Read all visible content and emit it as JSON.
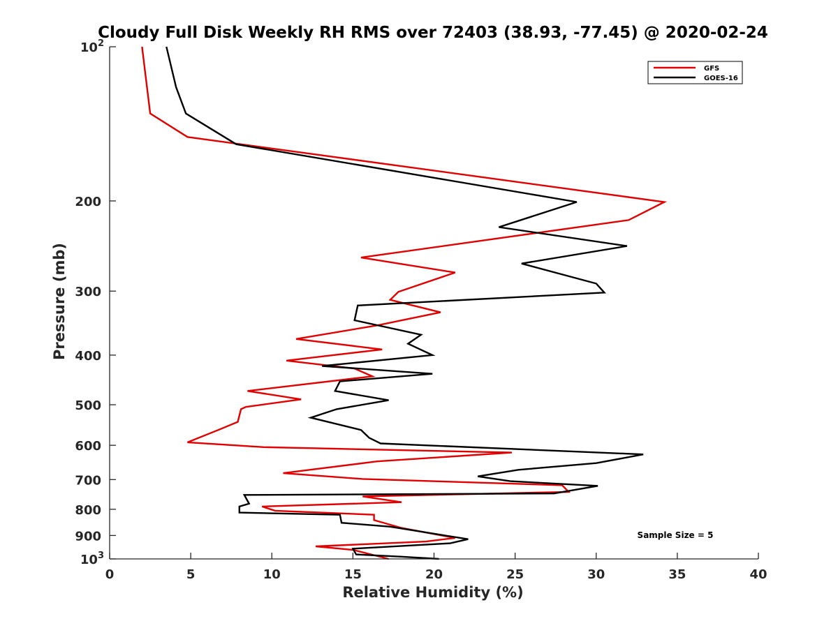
{
  "chart_data": {
    "type": "line",
    "title": "Cloudy Full Disk Weekly RH RMS over 72403 (38.93, -77.45) @ 2020-02-24",
    "xlabel": "Relative Humidity (%)",
    "ylabel": "Pressure (mb)",
    "xlim": [
      0,
      40
    ],
    "ylim": [
      100,
      1000
    ],
    "y_scale": "log",
    "y_reversed": true,
    "grid": false,
    "x_ticks": [
      {
        "value": 0,
        "label": "0"
      },
      {
        "value": 5,
        "label": "5"
      },
      {
        "value": 10,
        "label": "10"
      },
      {
        "value": 15,
        "label": "15"
      },
      {
        "value": 20,
        "label": "20"
      },
      {
        "value": 25,
        "label": "25"
      },
      {
        "value": 30,
        "label": "30"
      },
      {
        "value": 35,
        "label": "35"
      },
      {
        "value": 40,
        "label": "40"
      }
    ],
    "y_ticks": [
      {
        "value": 100,
        "base": "10",
        "exp": "2"
      },
      {
        "value": 200,
        "label": "200"
      },
      {
        "value": 300,
        "label": "300"
      },
      {
        "value": 400,
        "label": "400"
      },
      {
        "value": 500,
        "label": "500"
      },
      {
        "value": 600,
        "label": "600"
      },
      {
        "value": 700,
        "label": "700"
      },
      {
        "value": 800,
        "label": "800"
      },
      {
        "value": 900,
        "label": "900"
      },
      {
        "value": 1000,
        "base": "10",
        "exp": "3"
      }
    ],
    "legend_position": "top-right",
    "annotation": "Sample Size = 5",
    "series": [
      {
        "name": "GFS",
        "color": "#e00000",
        "points": [
          [
            2.0,
            100
          ],
          [
            2.5,
            135
          ],
          [
            4.8,
            150
          ],
          [
            34.2,
            201
          ],
          [
            32.0,
            218
          ],
          [
            15.5,
            258
          ],
          [
            21.3,
            276
          ],
          [
            17.8,
            301
          ],
          [
            17.3,
            312
          ],
          [
            20.4,
            330
          ],
          [
            16.5,
            350
          ],
          [
            11.5,
            372
          ],
          [
            16.8,
            390
          ],
          [
            10.9,
            410
          ],
          [
            15.1,
            425
          ],
          [
            16.2,
            440
          ],
          [
            8.5,
            470
          ],
          [
            11.8,
            488
          ],
          [
            8.4,
            505
          ],
          [
            8.1,
            510
          ],
          [
            7.9,
            540
          ],
          [
            6.7,
            560
          ],
          [
            4.8,
            592
          ],
          [
            9.5,
            605
          ],
          [
            24.8,
            620
          ],
          [
            16.5,
            645
          ],
          [
            10.7,
            680
          ],
          [
            15.6,
            698
          ],
          [
            27.9,
            718
          ],
          [
            28.3,
            740
          ],
          [
            15.6,
            755
          ],
          [
            18.0,
            775
          ],
          [
            9.4,
            790
          ],
          [
            10.2,
            805
          ],
          [
            16.3,
            820
          ],
          [
            16.3,
            840
          ],
          [
            18.0,
            870
          ],
          [
            21.3,
            910
          ],
          [
            19.5,
            925
          ],
          [
            12.7,
            945
          ],
          [
            15.0,
            960
          ],
          [
            17.2,
            1000
          ]
        ]
      },
      {
        "name": "GOES-16",
        "color": "#000000",
        "points": [
          [
            3.5,
            100
          ],
          [
            4.1,
            120
          ],
          [
            4.7,
            135
          ],
          [
            7.8,
            155
          ],
          [
            28.8,
            201
          ],
          [
            24.0,
            225
          ],
          [
            31.9,
            245
          ],
          [
            25.4,
            265
          ],
          [
            30.0,
            290
          ],
          [
            30.5,
            302
          ],
          [
            15.3,
            320
          ],
          [
            15.1,
            342
          ],
          [
            19.2,
            365
          ],
          [
            18.4,
            380
          ],
          [
            19.9,
            400
          ],
          [
            13.1,
            420
          ],
          [
            19.9,
            435
          ],
          [
            14.2,
            450
          ],
          [
            13.9,
            470
          ],
          [
            17.2,
            490
          ],
          [
            14.0,
            510
          ],
          [
            12.4,
            530
          ],
          [
            15.5,
            560
          ],
          [
            16.0,
            580
          ],
          [
            16.7,
            595
          ],
          [
            32.9,
            625
          ],
          [
            30.0,
            650
          ],
          [
            25.2,
            670
          ],
          [
            22.7,
            690
          ],
          [
            24.7,
            705
          ],
          [
            30.1,
            720
          ],
          [
            27.4,
            745
          ],
          [
            8.3,
            750
          ],
          [
            8.6,
            780
          ],
          [
            8.0,
            790
          ],
          [
            8.0,
            812
          ],
          [
            14.2,
            820
          ],
          [
            14.3,
            850
          ],
          [
            17.3,
            865
          ],
          [
            22.1,
            915
          ],
          [
            21.0,
            932
          ],
          [
            15.0,
            955
          ],
          [
            15.2,
            980
          ],
          [
            18.0,
            990
          ],
          [
            20.3,
            1000
          ]
        ]
      }
    ]
  }
}
